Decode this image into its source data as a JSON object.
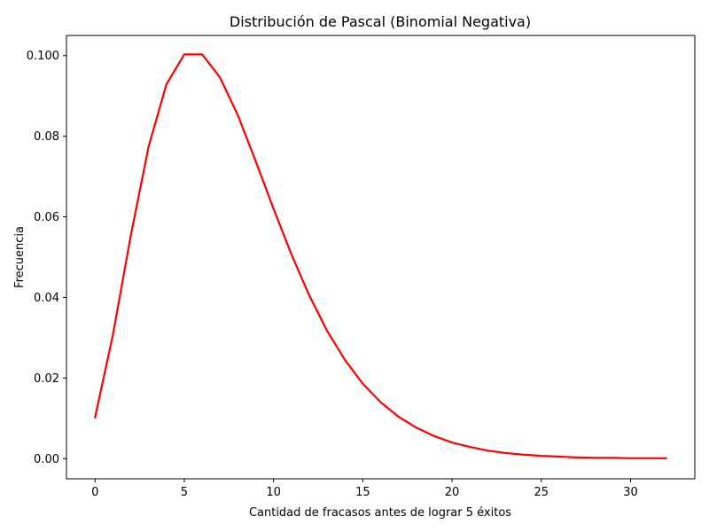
{
  "chart_data": {
    "type": "line",
    "title": "Distribución de Pascal (Binomial Negativa)",
    "xlabel": "Cantidad de fracasos antes de lograr 5 éxitos",
    "ylabel": "Frecuencia",
    "xlim": [
      -1.6,
      33.6
    ],
    "ylim": [
      -0.005,
      0.105
    ],
    "x_ticks": [
      0,
      5,
      10,
      15,
      20,
      25,
      30
    ],
    "y_ticks": [
      0.0,
      0.02,
      0.04,
      0.06,
      0.08,
      0.1
    ],
    "x_tick_labels": [
      "0",
      "5",
      "10",
      "15",
      "20",
      "25",
      "30"
    ],
    "y_tick_labels": [
      "0.00",
      "0.02",
      "0.04",
      "0.06",
      "0.08",
      "0.100"
    ],
    "grid": false,
    "series": [
      {
        "color": "#ff0000",
        "x": [
          0,
          1,
          2,
          3,
          4,
          5,
          6,
          7,
          8,
          9,
          10,
          11,
          12,
          13,
          14,
          15,
          16,
          17,
          18,
          19,
          20,
          21,
          22,
          23,
          24,
          25,
          26,
          27,
          28,
          29,
          30,
          31,
          32
        ],
        "y": [
          0.0102,
          0.0307,
          0.0553,
          0.0774,
          0.0929,
          0.1003,
          0.1003,
          0.0946,
          0.0852,
          0.0738,
          0.062,
          0.0507,
          0.0405,
          0.0317,
          0.0245,
          0.0186,
          0.014,
          0.0104,
          0.0077,
          0.0056,
          0.004,
          0.0029,
          0.002,
          0.0014,
          0.001,
          0.0007,
          0.0005,
          0.0003,
          0.0002,
          0.0002,
          0.0001,
          0.0001,
          0.0001
        ]
      }
    ]
  }
}
